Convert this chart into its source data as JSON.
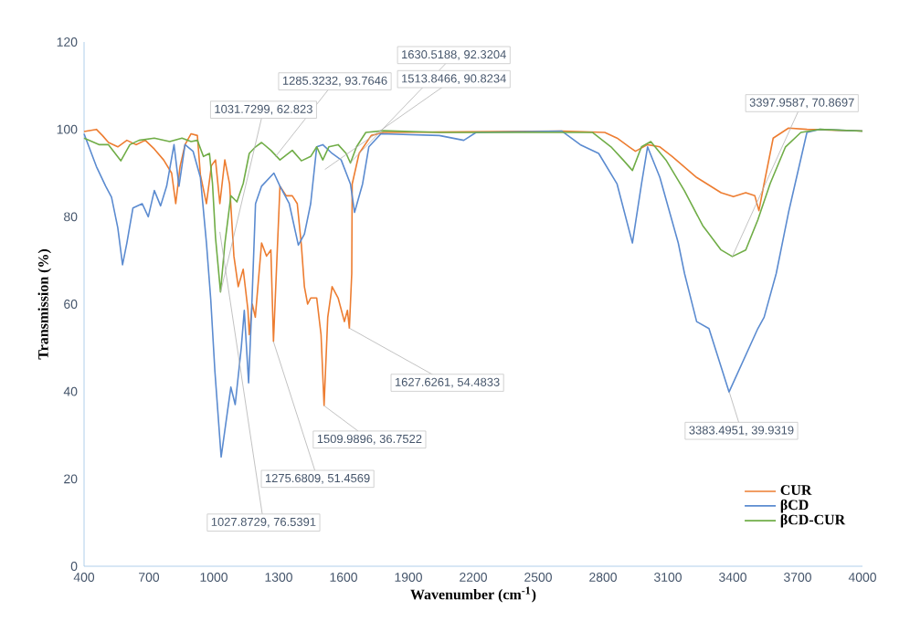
{
  "chart_data": {
    "type": "line",
    "xlabel": "Wavenumber (cm$^{-1}$)",
    "ylabel": "Transmission (%)",
    "xlim": [
      400,
      4000
    ],
    "xticks": [
      400,
      700,
      1000,
      1300,
      1600,
      1900,
      2200,
      2500,
      2800,
      3100,
      3400,
      3700,
      4000
    ],
    "ylim": [
      0,
      120
    ],
    "yticks": [
      0,
      20,
      40,
      60,
      80,
      100,
      120
    ],
    "legend": "bottom right",
    "line_style": "solid",
    "series": [
      {
        "name": "CUR",
        "color": "#ed7d31",
        "x": [
          400,
          457,
          485,
          513,
          556,
          598,
          640,
          683,
          725,
          768,
          805,
          824,
          844,
          867,
          895,
          924,
          938,
          966,
          989,
          1008,
          1028,
          1051,
          1073,
          1093,
          1113,
          1136,
          1158,
          1164,
          1178,
          1192,
          1221,
          1244,
          1264,
          1276,
          1306,
          1335,
          1363,
          1386,
          1405,
          1419,
          1434,
          1448,
          1476,
          1496,
          1510,
          1527,
          1547,
          1575,
          1604,
          1618,
          1627,
          1638,
          1640,
          1672,
          1728,
          1785,
          2610,
          2808,
          2865,
          2921,
          2950,
          3006,
          3063,
          3120,
          3233,
          3346,
          3403,
          3460,
          3502,
          3521,
          3545,
          3587,
          3658,
          3743,
          4000
        ],
        "values": [
          99.5,
          100,
          98.6,
          97,
          96,
          97.5,
          96.5,
          97.5,
          95.5,
          93,
          90,
          83,
          91.5,
          96.5,
          99,
          98.6,
          89.6,
          83,
          91.7,
          93,
          83,
          93,
          87.5,
          71,
          64,
          68,
          58.6,
          53,
          60,
          57,
          74,
          71,
          72.4,
          51.5,
          87,
          84.8,
          84.8,
          83,
          73.5,
          64,
          60,
          61.4,
          61.4,
          53,
          36.8,
          57,
          64,
          61.4,
          56,
          58.6,
          54.5,
          67,
          87.5,
          94.5,
          98.6,
          99.3,
          99.6,
          99.3,
          98,
          96,
          95,
          96.5,
          96,
          93.8,
          89,
          85.5,
          84.6,
          85.5,
          84.8,
          81.4,
          87.6,
          98,
          100.3,
          100,
          99.6
        ]
      },
      {
        "name": "βCD",
        "color": "#5b8bd0",
        "x": [
          400,
          457,
          500,
          527,
          556,
          578,
          598,
          626,
          669,
          697,
          725,
          754,
          782,
          816,
          839,
          867,
          904,
          938,
          966,
          986,
          1005,
          1034,
          1062,
          1079,
          1099,
          1127,
          1141,
          1161,
          1175,
          1193,
          1221,
          1278,
          1306,
          1349,
          1391,
          1419,
          1448,
          1476,
          1504,
          1547,
          1589,
          1632,
          1651,
          1688,
          1717,
          1773,
          2043,
          2156,
          2213,
          2610,
          2695,
          2780,
          2865,
          2936,
          2978,
          3006,
          3063,
          3148,
          3177,
          3233,
          3290,
          3383,
          3516,
          3545,
          3601,
          3658,
          3743,
          3800,
          4000
        ],
        "values": [
          99,
          91.5,
          87,
          84.5,
          77.5,
          69,
          74,
          82,
          83,
          80,
          86,
          82.5,
          87,
          96.5,
          87,
          96.5,
          95,
          89,
          74,
          61,
          44.7,
          25,
          35,
          41,
          37,
          50,
          58.6,
          42,
          58.6,
          83,
          87,
          90,
          87,
          83,
          73.5,
          76,
          83,
          96,
          96.5,
          94.5,
          93,
          87.5,
          81,
          87.5,
          96,
          99,
          98.6,
          97.5,
          99.3,
          99.6,
          96.5,
          94.5,
          87.5,
          74,
          87.5,
          96,
          89,
          74,
          67,
          56,
          54.4,
          39.9,
          54.4,
          57,
          67,
          81,
          99.3,
          100,
          99.6
        ]
      },
      {
        "name": "βCD-CUR",
        "color": "#70ad47",
        "x": [
          400,
          471,
          513,
          570,
          612,
          654,
          725,
          796,
          853,
          895,
          924,
          952,
          980,
          994,
          1008,
          1031,
          1051,
          1079,
          1107,
          1136,
          1164,
          1193,
          1221,
          1264,
          1306,
          1363,
          1405,
          1448,
          1476,
          1504,
          1532,
          1575,
          1612,
          1632,
          1660,
          1703,
          1785,
          2043,
          2752,
          2837,
          2893,
          2936,
          2978,
          3021,
          3091,
          3176,
          3261,
          3346,
          3398,
          3460,
          3516,
          3573,
          3644,
          3715,
          3800,
          4000
        ],
        "values": [
          98,
          96.5,
          96.5,
          92.8,
          96.5,
          97.5,
          98,
          97.2,
          98,
          97.2,
          97.5,
          93.8,
          94.5,
          87.6,
          75.2,
          62.8,
          73.8,
          84.8,
          83.4,
          87.6,
          94.5,
          96,
          97,
          95.2,
          93,
          95.2,
          92.8,
          93.8,
          96,
          93,
          96,
          96.5,
          94.5,
          92.3,
          96,
          99.3,
          99.7,
          99.3,
          99.3,
          96,
          93,
          90.6,
          96,
          97.2,
          93,
          86,
          78,
          72.4,
          70.9,
          72.4,
          79.3,
          87.6,
          96,
          99.3,
          100,
          99.6
        ]
      }
    ],
    "annotations": [
      {
        "text": "1285.3232, 93.7646",
        "x": 1285.3232,
        "y": 93.7646
      },
      {
        "text": "1031.7299, 62.823",
        "x": 1031.7299,
        "y": 62.823
      },
      {
        "text": "1630.5188, 92.3204",
        "x": 1630.5188,
        "y": 92.3204
      },
      {
        "text": "1513.8466, 90.8234",
        "x": 1513.8466,
        "y": 90.8234
      },
      {
        "text": "3397.9587, 70.8697",
        "x": 3397.9587,
        "y": 70.8697
      },
      {
        "text": "1627.6261, 54.4833",
        "x": 1627.6261,
        "y": 54.4833
      },
      {
        "text": "1509.9896, 36.7522",
        "x": 1509.9896,
        "y": 36.7522
      },
      {
        "text": "1275.6809, 51.4569",
        "x": 1275.6809,
        "y": 51.4569
      },
      {
        "text": "1027.8729, 76.5391",
        "x": 1027.8729,
        "y": 76.5391
      },
      {
        "text": "3383.4951, 39.9319",
        "x": 3383.4951,
        "y": 39.9319
      }
    ]
  }
}
